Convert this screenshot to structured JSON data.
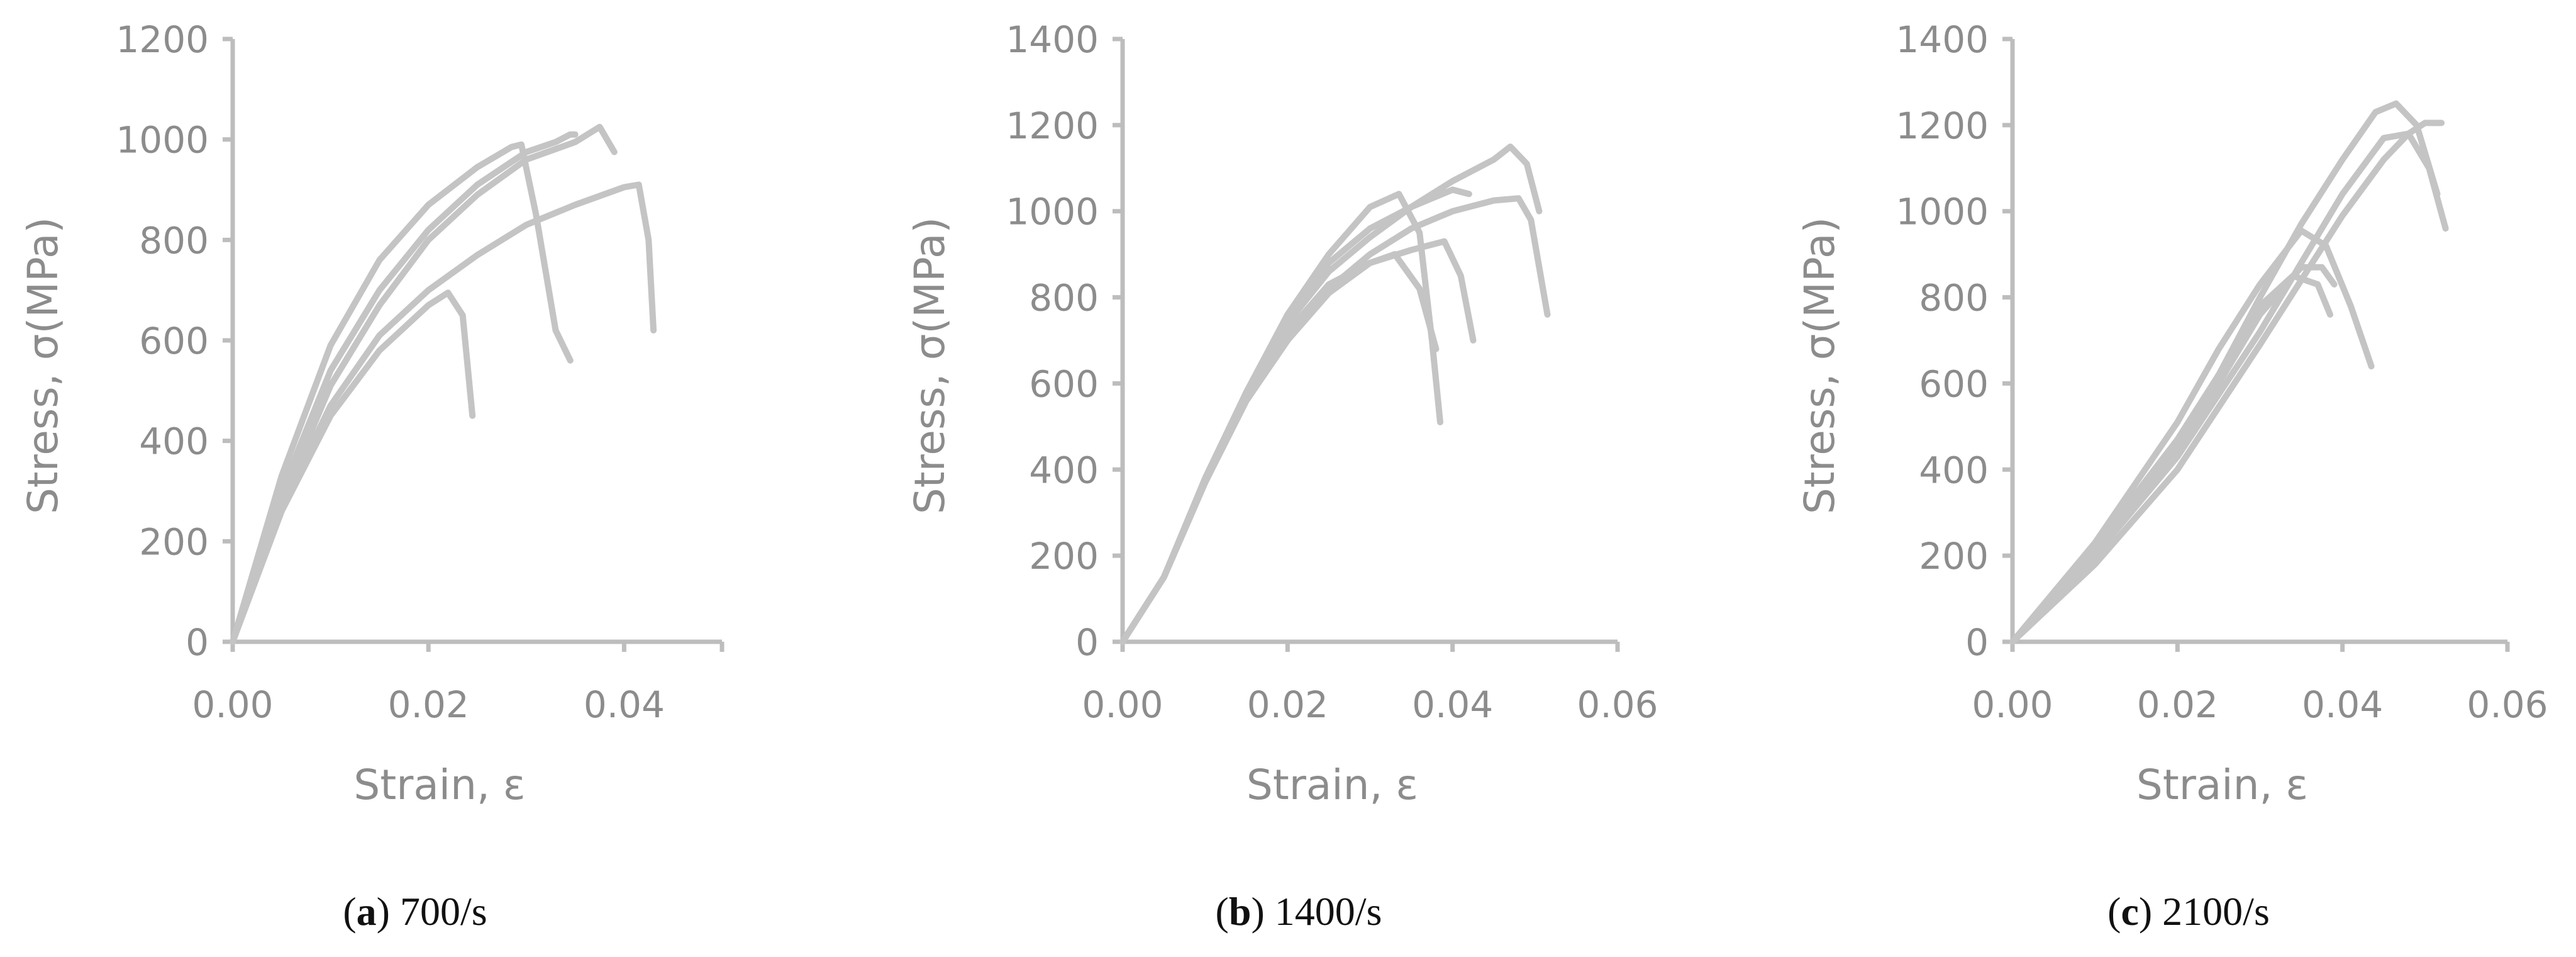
{
  "chart_data": [
    {
      "type": "line",
      "panel": "a",
      "caption_letter": "a",
      "caption_text": " 700/s",
      "xlabel": "Strain, ε",
      "ylabel": "Stress, σ(MPa)",
      "xlim": [
        0,
        0.05
      ],
      "ylim": [
        0,
        1200
      ],
      "xticks": [
        "0.00",
        "0.02",
        "0.04"
      ],
      "xtick_values": [
        0,
        0.02,
        0.04
      ],
      "yticks": [
        "0",
        "200",
        "400",
        "600",
        "800",
        "1000",
        "1200"
      ],
      "ytick_values": [
        0,
        200,
        400,
        600,
        800,
        1000,
        1200
      ],
      "grid": false,
      "legend": "none",
      "line_color": "#c4c4c4",
      "series": [
        {
          "x": [
            0,
            0.005,
            0.01,
            0.015,
            0.02,
            0.022,
            0.0235,
            0.0245
          ],
          "y": [
            0,
            260,
            450,
            580,
            670,
            695,
            650,
            450
          ]
        },
        {
          "x": [
            0,
            0.005,
            0.01,
            0.015,
            0.02,
            0.025,
            0.03,
            0.035,
            0.04,
            0.0415,
            0.0425,
            0.043
          ],
          "y": [
            0,
            270,
            470,
            610,
            700,
            770,
            830,
            870,
            905,
            910,
            800,
            620
          ]
        },
        {
          "x": [
            0,
            0.005,
            0.01,
            0.015,
            0.02,
            0.025,
            0.0285,
            0.0295,
            0.031,
            0.033,
            0.0345
          ],
          "y": [
            0,
            330,
            590,
            760,
            870,
            945,
            985,
            990,
            850,
            620,
            560
          ]
        },
        {
          "x": [
            0,
            0.005,
            0.01,
            0.015,
            0.02,
            0.025,
            0.03,
            0.033,
            0.0345,
            0.035
          ],
          "y": [
            0,
            300,
            540,
            700,
            820,
            910,
            975,
            995,
            1010,
            1010
          ]
        },
        {
          "x": [
            0,
            0.005,
            0.01,
            0.015,
            0.02,
            0.025,
            0.03,
            0.035,
            0.0375,
            0.039
          ],
          "y": [
            0,
            280,
            510,
            670,
            800,
            890,
            960,
            995,
            1025,
            975
          ]
        }
      ]
    },
    {
      "type": "line",
      "panel": "b",
      "caption_letter": "b",
      "caption_text": " 1400/s",
      "xlabel": "Strain, ε",
      "ylabel": "Stress, σ(MPa)",
      "xlim": [
        0,
        0.06
      ],
      "ylim": [
        0,
        1400
      ],
      "xticks": [
        "0.00",
        "0.02",
        "0.04",
        "0.06"
      ],
      "xtick_values": [
        0,
        0.02,
        0.04,
        0.06
      ],
      "yticks": [
        "0",
        "200",
        "400",
        "600",
        "800",
        "1000",
        "1200",
        "1400"
      ],
      "ytick_values": [
        0,
        200,
        400,
        600,
        800,
        1000,
        1200,
        1400
      ],
      "grid": false,
      "legend": "none",
      "line_color": "#c4c4c4",
      "series": [
        {
          "x": [
            0,
            0.005,
            0.01,
            0.015,
            0.02,
            0.025,
            0.03,
            0.0335,
            0.036,
            0.0375,
            0.0385
          ],
          "y": [
            0,
            150,
            380,
            580,
            760,
            900,
            1010,
            1040,
            950,
            700,
            510
          ]
        },
        {
          "x": [
            0,
            0.005,
            0.01,
            0.015,
            0.02,
            0.025,
            0.03,
            0.033,
            0.036,
            0.038
          ],
          "y": [
            0,
            150,
            370,
            560,
            700,
            810,
            880,
            900,
            820,
            680
          ]
        },
        {
          "x": [
            0,
            0.005,
            0.01,
            0.015,
            0.02,
            0.025,
            0.03,
            0.035,
            0.039,
            0.041,
            0.0425
          ],
          "y": [
            0,
            150,
            370,
            570,
            720,
            830,
            880,
            910,
            930,
            850,
            700
          ]
        },
        {
          "x": [
            0,
            0.005,
            0.01,
            0.015,
            0.02,
            0.025,
            0.03,
            0.035,
            0.04,
            0.042
          ],
          "y": [
            0,
            150,
            370,
            580,
            750,
            880,
            960,
            1010,
            1050,
            1040
          ]
        },
        {
          "x": [
            0,
            0.005,
            0.01,
            0.015,
            0.02,
            0.025,
            0.03,
            0.035,
            0.04,
            0.045,
            0.048,
            0.0495,
            0.0515
          ],
          "y": [
            0,
            150,
            370,
            560,
            700,
            820,
            900,
            960,
            1000,
            1025,
            1030,
            980,
            760
          ]
        },
        {
          "x": [
            0,
            0.005,
            0.01,
            0.015,
            0.02,
            0.025,
            0.03,
            0.035,
            0.04,
            0.045,
            0.047,
            0.049,
            0.0505
          ],
          "y": [
            0,
            150,
            370,
            570,
            740,
            860,
            940,
            1010,
            1070,
            1120,
            1150,
            1110,
            1000
          ]
        }
      ]
    },
    {
      "type": "line",
      "panel": "c",
      "caption_letter": "c",
      "caption_text": " 2100/s",
      "xlabel": "Strain, ε",
      "ylabel": "Stress, σ(MPa)",
      "xlim": [
        0,
        0.06
      ],
      "ylim": [
        0,
        1400
      ],
      "xticks": [
        "0.00",
        "0.02",
        "0.04",
        "0.06"
      ],
      "xtick_values": [
        0,
        0.02,
        0.04,
        0.06
      ],
      "yticks": [
        "0",
        "200",
        "400",
        "600",
        "800",
        "1000",
        "1200",
        "1400"
      ],
      "ytick_values": [
        0,
        200,
        400,
        600,
        800,
        1000,
        1200,
        1400
      ],
      "grid": false,
      "legend": "none",
      "line_color": "#c4c4c4",
      "series": [
        {
          "x": [
            0,
            0.01,
            0.02,
            0.025,
            0.03,
            0.034,
            0.037,
            0.0385
          ],
          "y": [
            0,
            220,
            470,
            620,
            780,
            850,
            830,
            760
          ]
        },
        {
          "x": [
            0,
            0.01,
            0.02,
            0.025,
            0.03,
            0.035,
            0.038,
            0.041,
            0.0435
          ],
          "y": [
            0,
            230,
            510,
            680,
            830,
            955,
            920,
            780,
            640
          ]
        },
        {
          "x": [
            0,
            0.01,
            0.02,
            0.025,
            0.03,
            0.035,
            0.0375,
            0.039
          ],
          "y": [
            0,
            200,
            450,
            600,
            760,
            870,
            870,
            830
          ]
        },
        {
          "x": [
            0,
            0.01,
            0.02,
            0.025,
            0.03,
            0.035,
            0.04,
            0.044,
            0.0465,
            0.049,
            0.0515
          ],
          "y": [
            0,
            210,
            460,
            620,
            800,
            970,
            1120,
            1230,
            1250,
            1200,
            1040
          ]
        },
        {
          "x": [
            0,
            0.01,
            0.02,
            0.03,
            0.035,
            0.04,
            0.045,
            0.048,
            0.05,
            0.052
          ],
          "y": [
            0,
            180,
            400,
            690,
            840,
            990,
            1120,
            1180,
            1205,
            1205
          ]
        },
        {
          "x": [
            0,
            0.01,
            0.02,
            0.03,
            0.035,
            0.04,
            0.045,
            0.048,
            0.0505,
            0.0525
          ],
          "y": [
            0,
            200,
            430,
            720,
            880,
            1040,
            1170,
            1180,
            1100,
            960
          ]
        }
      ]
    }
  ]
}
